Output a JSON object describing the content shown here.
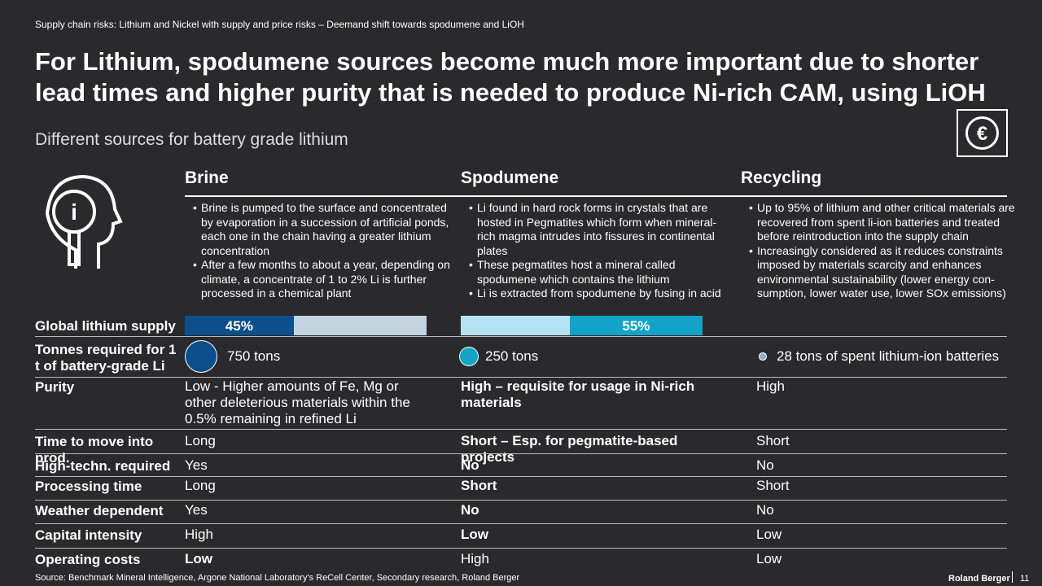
{
  "header": {
    "breadcrumb": "Supply chain risks: Lithium  and Nickel with  supply and price risks – Deemand shift towards spodumene and LiOH",
    "title": "For Lithium, spodumene sources become much more important due to shorter lead times and higher purity that is needed to produce Ni-rich CAM, using LiOH",
    "subtitle": "Different sources for battery grade lithium"
  },
  "columns": [
    "Brine",
    "Spodumene",
    "Recycling"
  ],
  "descriptions": [
    [
      "Brine is pumped to the surface and concentrated by evaporation in a succession of artificial ponds, each one in the chain having a greater lithium concentration",
      "After a few months to about a year, depending on climate, a concentrate of 1 to 2% Li is further processed in a chemical plant"
    ],
    [
      "Li found in hard rock forms in crystals that are hosted in Pegmatites which form when mineral-rich magma intrudes into fissures in continental plates",
      "These pegmatites host a mineral called spodumene which contains the lithium",
      "Li is extracted from spodumene by fusing in acid"
    ],
    [
      "Up to 95% of lithium and other critical materials are recovered from spent li-ion batteries and treated before reintroduction into the supply chain",
      "Increasingly considered as it reduces constraints imposed by materials scarcity and enhances environmental sustainability (lower energy con-sumption, lower water use, lower SOx emissions)"
    ]
  ],
  "supply": {
    "label": "Global lithium supply",
    "shares": [
      {
        "value": 45,
        "label": "45%",
        "color": "#0b4f8c"
      },
      {
        "value": 55,
        "label": "55%",
        "color": "#12a3c9"
      }
    ]
  },
  "tonnes": {
    "label": "Tonnes required for 1 t of battery-grade Li",
    "amounts": [
      {
        "value": 750,
        "label": "750 tons",
        "color": "#0b4f8c"
      },
      {
        "value": 250,
        "label": "250 tons",
        "color": "#12a3c9"
      },
      {
        "value": 28,
        "label": "28 tons of spent lithium-ion batteries",
        "color": "#8fb2cc"
      }
    ]
  },
  "rows": [
    {
      "label": "Purity",
      "cells": [
        "Low - Higher amounts of Fe, Mg or other deleterious materials within the 0.5% remaining in refined Li",
        "High – requisite for usage in Ni-rich materials",
        "High"
      ],
      "bold": [
        false,
        true,
        false
      ]
    },
    {
      "label": "Time to move into prod.",
      "cells": [
        "Long",
        "Short – Esp. for pegmatite-based projects",
        "Short"
      ],
      "bold": [
        false,
        true,
        false
      ]
    },
    {
      "label": "High-techn. required",
      "cells": [
        "Yes",
        "No",
        "No"
      ],
      "bold": [
        false,
        true,
        false
      ]
    },
    {
      "label": "Processing time",
      "cells": [
        "Long",
        "Short",
        "Short"
      ],
      "bold": [
        false,
        true,
        false
      ]
    },
    {
      "label": "Weather dependent",
      "cells": [
        "Yes",
        "No",
        "No"
      ],
      "bold": [
        false,
        true,
        false
      ]
    },
    {
      "label": "Capital intensity",
      "cells": [
        "High",
        "Low",
        "Low"
      ],
      "bold": [
        false,
        true,
        false
      ]
    },
    {
      "label": "Operating costs",
      "cells": [
        "Low",
        "High",
        "Low"
      ],
      "bold": [
        true,
        false,
        false
      ]
    }
  ],
  "footer": {
    "source": "Source: Benchmark Mineral Intelligence, Argone National Laboratory's ReCell Center, Secondary research, Roland Berger",
    "brand": "Roland Berger",
    "page": "11"
  }
}
